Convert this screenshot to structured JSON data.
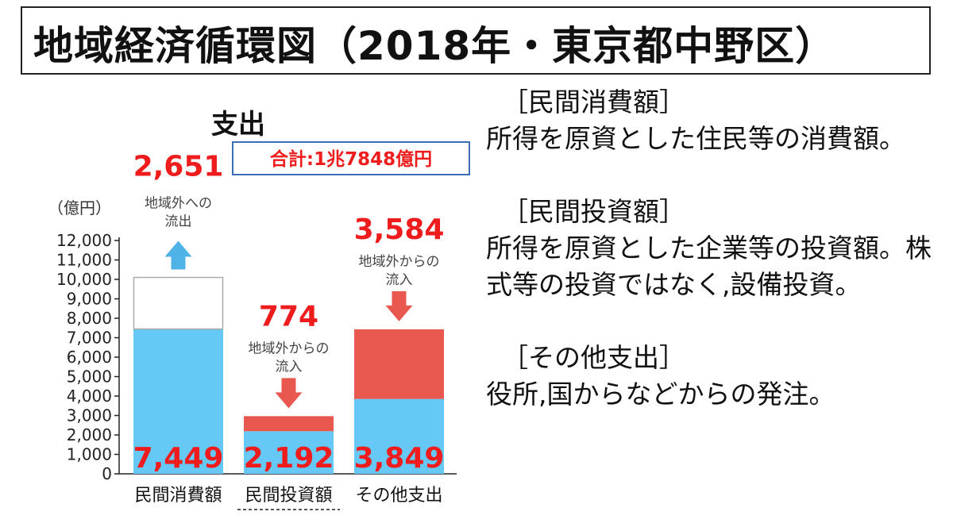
{
  "title": "地域経済循環図（2018年・東京都中野区）",
  "chart_data": {
    "type": "bar",
    "title": "支出",
    "total_label": "合計:1兆7848億円",
    "unit_label": "（億円）",
    "ylim": [
      0,
      12000
    ],
    "yticks": [
      "0",
      "1,000",
      "2,000",
      "3,000",
      "4,000",
      "5,000",
      "6,000",
      "7,000",
      "8,000",
      "9,000",
      "10,000",
      "11,000",
      "12,000"
    ],
    "categories": [
      "民間消費額",
      "民間投資額",
      "その他支出"
    ],
    "series": [
      {
        "values": [
          7449,
          2192,
          3849
        ],
        "labels": [
          "7,449",
          "2,192",
          "3,849"
        ]
      },
      {
        "values": [
          2651,
          774,
          3584
        ],
        "labels": [
          "2,651",
          "774",
          "3,584"
        ]
      }
    ],
    "annotations": [
      {
        "value_label": "2,651",
        "text_lines": [
          "地域外への",
          "流出"
        ],
        "direction": "up"
      },
      {
        "value_label": "774",
        "text_lines": [
          "地域外からの",
          "流入"
        ],
        "direction": "down"
      },
      {
        "value_label": "3,584",
        "text_lines": [
          "地域外からの",
          "流入"
        ],
        "direction": "down"
      }
    ]
  },
  "colors": {
    "base": "#66c8f5",
    "inflow": "#e8584f",
    "arrow_up": "#4fb3e8",
    "arrow_down": "#e8584f",
    "red_text": "#ee1c1c",
    "outline": "#aaaaaa"
  },
  "descriptions": [
    {
      "head": "［民間消費額］",
      "body": "所得を原資とした住民等の消費額。"
    },
    {
      "head": "［民間投資額］",
      "body": "所得を原資とした企業等の投資額。株式等の投資ではなく,設備投資。"
    },
    {
      "head": "［その他支出］",
      "body": "役所,国からなどからの発注。"
    }
  ]
}
